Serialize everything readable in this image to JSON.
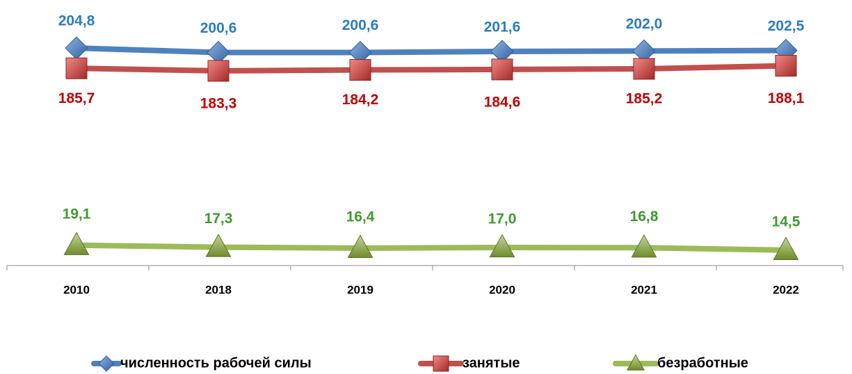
{
  "chart_data": {
    "type": "line",
    "categories": [
      "2010",
      "2018",
      "2019",
      "2020",
      "2021",
      "2022"
    ],
    "ylim": [
      0,
      250
    ],
    "series": [
      {
        "name": "численность рабочей силы",
        "color": "#4f81bd",
        "label_color": "#2a7bc4",
        "marker": "diamond",
        "values": [
          204.8,
          200.6,
          200.6,
          201.6,
          202.0,
          202.5
        ],
        "value_labels": [
          "204,8",
          "200,6",
          "200,6",
          "201,6",
          "202,0",
          "202,5"
        ]
      },
      {
        "name": "занятые",
        "color": "#c0504d",
        "label_color": "#c00000",
        "marker": "square",
        "values": [
          185.7,
          183.3,
          184.2,
          184.6,
          185.2,
          188.1
        ],
        "value_labels": [
          "185,7",
          "183,3",
          "184,2",
          "184,6",
          "185,2",
          "188,1"
        ]
      },
      {
        "name": "безработные",
        "color": "#9bbb59",
        "label_color": "#3f9a2e",
        "marker": "triangle",
        "values": [
          19.1,
          17.3,
          16.4,
          17.0,
          16.8,
          14.5
        ],
        "value_labels": [
          "19,1",
          "17,3",
          "16,4",
          "17,0",
          "16,8",
          "14,5"
        ]
      }
    ],
    "legend": "bottom"
  }
}
